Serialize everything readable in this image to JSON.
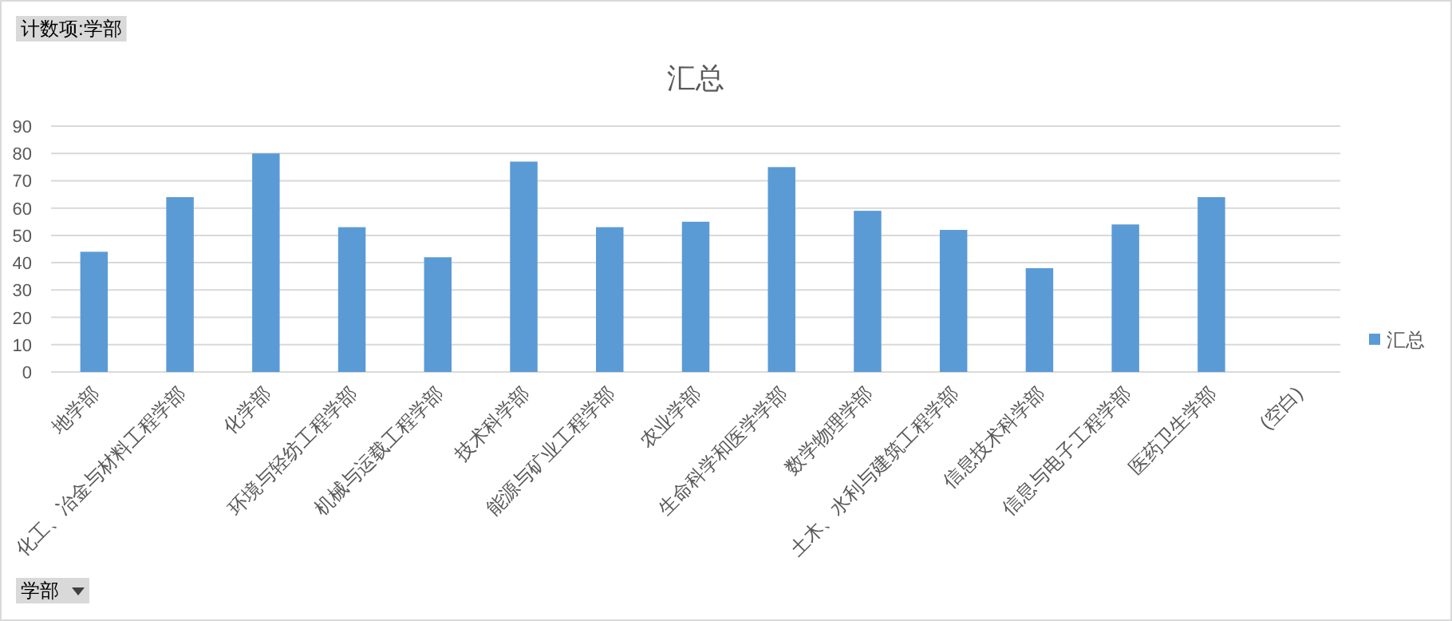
{
  "chart_data": {
    "type": "bar",
    "title": "汇总",
    "categories": [
      "地学部",
      "化工、冶金与材料工程学部",
      "化学部",
      "环境与轻纺工程学部",
      "机械与运载工程学部",
      "技术科学部",
      "能源与矿业工程学部",
      "农业学部",
      "生命科学和医学学部",
      "数学物理学部",
      "土木、水利与建筑工程学部",
      "信息技术科学部",
      "信息与电子工程学部",
      "医药卫生学部",
      "(空白)"
    ],
    "series": [
      {
        "name": "汇总",
        "color": "#5b9bd5",
        "values": [
          44,
          64,
          80,
          53,
          42,
          77,
          53,
          55,
          75,
          59,
          52,
          38,
          54,
          64,
          null
        ]
      }
    ],
    "ylim": [
      0,
      90
    ],
    "yticks": [
      0,
      10,
      20,
      30,
      40,
      50,
      60,
      70,
      80,
      90
    ],
    "grid": "y",
    "legend": "right",
    "annotations": [
      "计数项:学部",
      "学部"
    ]
  }
}
